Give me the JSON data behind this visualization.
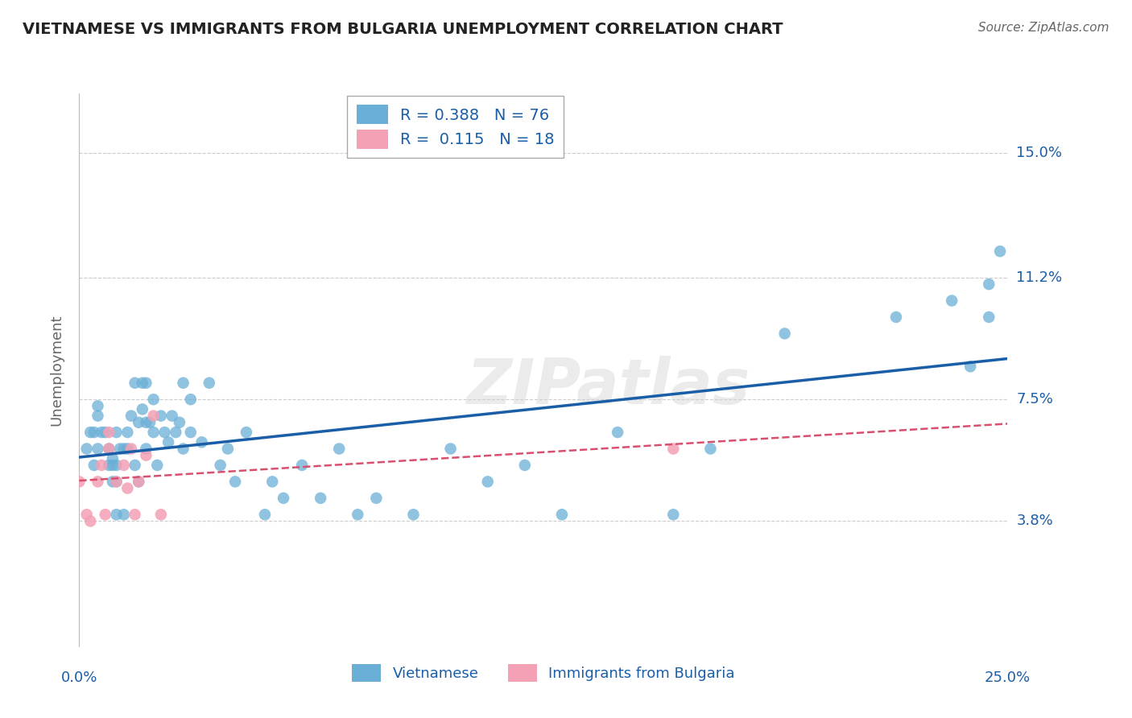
{
  "title": "VIETNAMESE VS IMMIGRANTS FROM BULGARIA UNEMPLOYMENT CORRELATION CHART",
  "source": "Source: ZipAtlas.com",
  "ylabel": "Unemployment",
  "watermark": "ZIPatlas",
  "xmin": 0.0,
  "xmax": 0.25,
  "ymin": 0.0,
  "ymax": 0.168,
  "yticks": [
    0.038,
    0.075,
    0.112,
    0.15
  ],
  "ytick_labels": [
    "3.8%",
    "7.5%",
    "11.2%",
    "15.0%"
  ],
  "xticks": [
    0.0,
    0.05,
    0.1,
    0.15,
    0.2,
    0.25
  ],
  "legend_r_viet": "0.388",
  "legend_n_viet": "76",
  "legend_r_bulg": "0.115",
  "legend_n_bulg": "18",
  "legend_label_viet": "Vietnamese",
  "legend_label_bulg": "Immigrants from Bulgaria",
  "blue_color": "#6aafd6",
  "pink_color": "#f4a0b5",
  "line_blue": "#1a5ea8",
  "line_pink": "#d94f6e",
  "axis_label_color": "#1a5ea8",
  "title_color": "#222222",
  "grid_color": "#cccccc",
  "background_color": "#ffffff",
  "viet_x": [
    0.002,
    0.003,
    0.004,
    0.004,
    0.005,
    0.005,
    0.005,
    0.006,
    0.007,
    0.008,
    0.008,
    0.009,
    0.009,
    0.009,
    0.01,
    0.01,
    0.01,
    0.01,
    0.011,
    0.012,
    0.012,
    0.013,
    0.013,
    0.014,
    0.015,
    0.015,
    0.016,
    0.016,
    0.017,
    0.017,
    0.018,
    0.018,
    0.018,
    0.019,
    0.02,
    0.02,
    0.021,
    0.022,
    0.023,
    0.024,
    0.025,
    0.026,
    0.027,
    0.028,
    0.028,
    0.03,
    0.03,
    0.033,
    0.035,
    0.038,
    0.04,
    0.042,
    0.045,
    0.05,
    0.052,
    0.055,
    0.06,
    0.065,
    0.07,
    0.075,
    0.08,
    0.09,
    0.1,
    0.11,
    0.12,
    0.13,
    0.145,
    0.16,
    0.17,
    0.19,
    0.22,
    0.235,
    0.24,
    0.245,
    0.245,
    0.248
  ],
  "viet_y": [
    0.06,
    0.065,
    0.055,
    0.065,
    0.06,
    0.07,
    0.073,
    0.065,
    0.065,
    0.055,
    0.06,
    0.05,
    0.055,
    0.057,
    0.04,
    0.05,
    0.055,
    0.065,
    0.06,
    0.04,
    0.06,
    0.06,
    0.065,
    0.07,
    0.055,
    0.08,
    0.05,
    0.068,
    0.072,
    0.08,
    0.06,
    0.068,
    0.08,
    0.068,
    0.065,
    0.075,
    0.055,
    0.07,
    0.065,
    0.062,
    0.07,
    0.065,
    0.068,
    0.06,
    0.08,
    0.065,
    0.075,
    0.062,
    0.08,
    0.055,
    0.06,
    0.05,
    0.065,
    0.04,
    0.05,
    0.045,
    0.055,
    0.045,
    0.06,
    0.04,
    0.045,
    0.04,
    0.06,
    0.05,
    0.055,
    0.04,
    0.065,
    0.04,
    0.06,
    0.095,
    0.1,
    0.105,
    0.085,
    0.11,
    0.1,
    0.12
  ],
  "bulg_x": [
    0.0,
    0.002,
    0.003,
    0.005,
    0.006,
    0.007,
    0.008,
    0.008,
    0.01,
    0.012,
    0.013,
    0.014,
    0.015,
    0.016,
    0.018,
    0.02,
    0.022,
    0.16
  ],
  "bulg_y": [
    0.05,
    0.04,
    0.038,
    0.05,
    0.055,
    0.04,
    0.06,
    0.065,
    0.05,
    0.055,
    0.048,
    0.06,
    0.04,
    0.05,
    0.058,
    0.07,
    0.04,
    0.06
  ]
}
